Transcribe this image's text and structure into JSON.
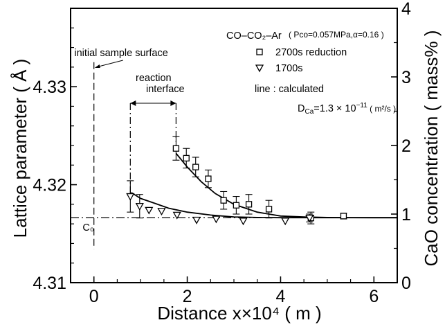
{
  "chart_data": {
    "type": "scatter",
    "title": "",
    "xlabel": "Distance x×10⁴ ( m )",
    "ylabel_left": "Lattice parameter ( Å )",
    "ylabel_right": "CaO concentration ( mass% )",
    "xlim": [
      -0.5,
      6.5
    ],
    "ylim_left": [
      4.31,
      4.338
    ],
    "ylim_right": [
      0,
      4
    ],
    "xticks": [
      0,
      2,
      4,
      6
    ],
    "yticks_left": [
      "4.31",
      "4.32",
      "4.33"
    ],
    "yticks_right": [
      "0",
      "1",
      "2",
      "3",
      "4"
    ],
    "grid": false,
    "legend_location": "top-right",
    "legend_header": "CO–CO₂–Ar",
    "legend_params": "( Pco=0.057MPa,α=0.16 )",
    "series": [
      {
        "name": "2700s reduction",
        "marker": "square",
        "points": [
          {
            "x": 1.76,
            "y": 4.3237,
            "err": 0.0012
          },
          {
            "x": 1.98,
            "y": 4.3227,
            "err": 0.001
          },
          {
            "x": 2.18,
            "y": 4.3218,
            "err": 0.001
          },
          {
            "x": 2.45,
            "y": 4.3206,
            "err": 0.0009
          },
          {
            "x": 2.78,
            "y": 4.3184,
            "err": 0.0009
          },
          {
            "x": 3.05,
            "y": 4.3179,
            "err": 0.0009
          },
          {
            "x": 3.32,
            "y": 4.318,
            "err": 0.001
          },
          {
            "x": 3.75,
            "y": 4.3175,
            "err": 0.0009
          },
          {
            "x": 4.65,
            "y": 4.3166,
            "err": 0.0006
          },
          {
            "x": 5.35,
            "y": 4.3168,
            "err": 0.0003
          }
        ]
      },
      {
        "name": "1700s",
        "marker": "triangle-down",
        "points": [
          {
            "x": 0.78,
            "y": 4.3188,
            "err": 0.0016
          },
          {
            "x": 0.98,
            "y": 4.3178,
            "err": 0.0012
          },
          {
            "x": 1.18,
            "y": 4.3174,
            "err": 0.0
          },
          {
            "x": 1.45,
            "y": 4.3173,
            "err": 0.0
          },
          {
            "x": 1.78,
            "y": 4.3169,
            "err": 0.0
          },
          {
            "x": 2.2,
            "y": 4.3164,
            "err": 0.0
          },
          {
            "x": 2.62,
            "y": 4.3165,
            "err": 0.0
          },
          {
            "x": 3.2,
            "y": 4.3163,
            "err": 0.0
          },
          {
            "x": 4.1,
            "y": 4.3163,
            "err": 0.0
          },
          {
            "x": 4.62,
            "y": 4.3166,
            "err": 0.0004
          }
        ]
      }
    ],
    "calculated_lines": [
      {
        "for": "2700s reduction",
        "x": [
          1.76,
          2.0,
          2.3,
          2.6,
          3.0,
          3.5,
          4.0,
          4.5,
          5.0,
          5.5,
          6.0,
          6.5
        ],
        "y": [
          4.3232,
          4.3218,
          4.3203,
          4.3191,
          4.318,
          4.3172,
          4.3168,
          4.3167,
          4.31665,
          4.31664,
          4.31663,
          4.31663
        ]
      },
      {
        "for": "1700s",
        "x": [
          0.8,
          1.0,
          1.3,
          1.6,
          2.0,
          2.5,
          3.0,
          3.5,
          4.0,
          4.5,
          5.0,
          6.5
        ],
        "y": [
          4.3192,
          4.3186,
          4.3181,
          4.3176,
          4.3172,
          4.3169,
          4.3167,
          4.31665,
          4.31663,
          4.31663,
          4.31663,
          4.31663
        ]
      }
    ],
    "c0_level": 4.31663,
    "c0_label": "C₀",
    "initial_surface_x": 0,
    "reaction_interface_x": [
      0.78,
      1.76
    ],
    "annotations": {
      "initial_surface": "initial sample surface",
      "reaction_interface_1": "reaction",
      "reaction_interface_2": "interface",
      "line_note": "line : calculated",
      "dca_label": "D",
      "dca_sub": "Ca",
      "dca_value": "=1.3 × 10",
      "dca_exp": "−11",
      "dca_units": " ( m²/s )"
    }
  }
}
